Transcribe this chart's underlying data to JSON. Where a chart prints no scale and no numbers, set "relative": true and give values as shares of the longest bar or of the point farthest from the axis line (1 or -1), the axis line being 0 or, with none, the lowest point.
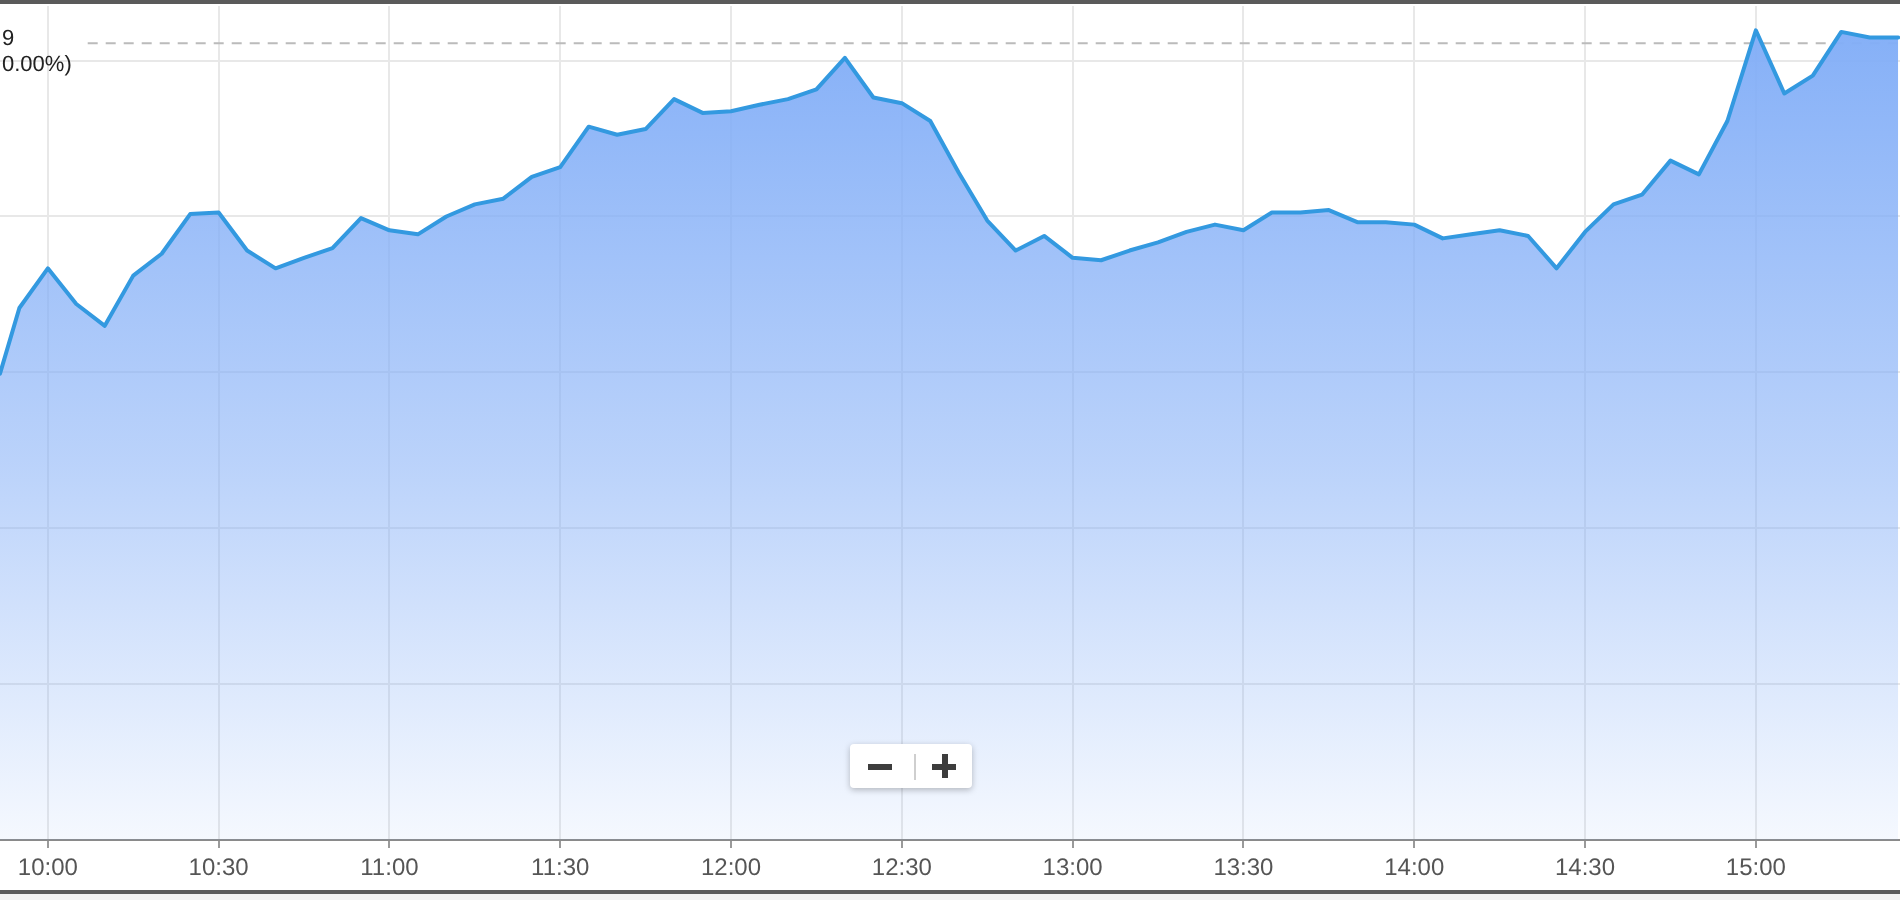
{
  "chart_data": {
    "type": "area",
    "relative": true,
    "x": [
      9.86,
      9.9167,
      10,
      10.0833,
      10.1667,
      10.25,
      10.3333,
      10.4167,
      10.5,
      10.5833,
      10.6667,
      10.75,
      10.8333,
      10.9167,
      11,
      11.0833,
      11.1667,
      11.25,
      11.3333,
      11.4167,
      11.5,
      11.5833,
      11.6667,
      11.75,
      11.8333,
      11.9167,
      12,
      12.0833,
      12.1667,
      12.25,
      12.3333,
      12.4167,
      12.5,
      12.5833,
      12.6667,
      12.75,
      12.8333,
      12.9167,
      13,
      13.0833,
      13.1667,
      13.25,
      13.3333,
      13.4167,
      13.5,
      13.5833,
      13.6667,
      13.75,
      13.8333,
      13.9167,
      14,
      14.0833,
      14.1667,
      14.25,
      14.3333,
      14.4167,
      14.5,
      14.5833,
      14.6667,
      14.75,
      14.8333,
      14.9167,
      15,
      15.0833,
      15.1667,
      15.25,
      15.3333,
      15.4167
    ],
    "values": [
      0.576,
      0.657,
      0.706,
      0.662,
      0.635,
      0.697,
      0.724,
      0.773,
      0.775,
      0.728,
      0.706,
      0.719,
      0.731,
      0.768,
      0.753,
      0.748,
      0.77,
      0.785,
      0.792,
      0.819,
      0.831,
      0.881,
      0.871,
      0.878,
      0.915,
      0.898,
      0.9,
      0.908,
      0.915,
      0.927,
      0.966,
      0.917,
      0.91,
      0.888,
      0.824,
      0.765,
      0.728,
      0.746,
      0.719,
      0.716,
      0.728,
      0.738,
      0.751,
      0.76,
      0.753,
      0.775,
      0.775,
      0.778,
      0.763,
      0.763,
      0.76,
      0.743,
      0.748,
      0.753,
      0.746,
      0.706,
      0.751,
      0.785,
      0.797,
      0.839,
      0.822,
      0.888,
      1,
      0.922,
      0.944,
      0.998,
      0.991,
      0.991
    ],
    "color": "#3399e0",
    "xlim": [
      9.86,
      15.422
    ],
    "xticks": [
      {
        "value": 10,
        "label": "10:00"
      },
      {
        "value": 10.5,
        "label": "10:30"
      },
      {
        "value": 11,
        "label": "11:00"
      },
      {
        "value": 11.5,
        "label": "11:30"
      },
      {
        "value": 12,
        "label": "12:00"
      },
      {
        "value": 12.5,
        "label": "12:30"
      },
      {
        "value": 13,
        "label": "13:00"
      },
      {
        "value": 13.5,
        "label": "13:30"
      },
      {
        "value": 14,
        "label": "14:00"
      },
      {
        "value": 14.5,
        "label": "14:30"
      },
      {
        "value": 15,
        "label": "15:00"
      }
    ],
    "ref_lines": [
      {
        "axis": "y",
        "value": 0.984,
        "color": "#bbbbbb",
        "line_style": "dashed"
      }
    ],
    "annotations": [
      "9\n0.00%)"
    ],
    "grid": true,
    "tick_labels": "x"
  }
}
